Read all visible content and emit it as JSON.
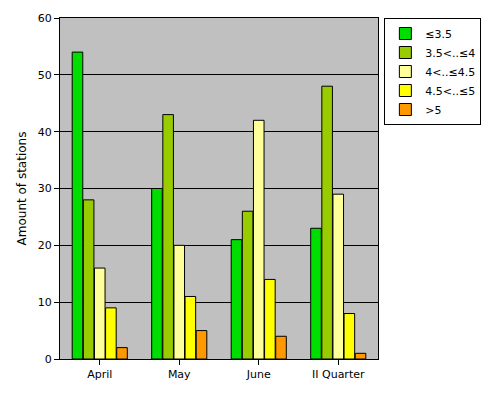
{
  "chart_data": {
    "type": "bar",
    "categories": [
      "April",
      "May",
      "June",
      "II Quarter"
    ],
    "y_label": "Amount of stations",
    "series": [
      {
        "name": "≤3.5",
        "color": "#00dd00",
        "values": [
          54,
          30,
          21,
          23
        ]
      },
      {
        "name": "3.5<..≤4",
        "color": "#99cc00",
        "values": [
          28,
          43,
          26,
          48
        ]
      },
      {
        "name": "4<..≤4.5",
        "color": "#ffff99",
        "values": [
          16,
          20,
          42,
          29
        ]
      },
      {
        "name": "4.5<..≤5",
        "color": "#ffff00",
        "values": [
          9,
          11,
          14,
          8
        ]
      },
      {
        "name": ">5",
        "color": "#ff9900",
        "values": [
          2,
          5,
          4,
          1
        ]
      }
    ],
    "ylim": [
      0,
      60
    ],
    "yticks": [
      0,
      10,
      20,
      30,
      40,
      50,
      60
    ],
    "grid": true,
    "legend": "top right"
  }
}
